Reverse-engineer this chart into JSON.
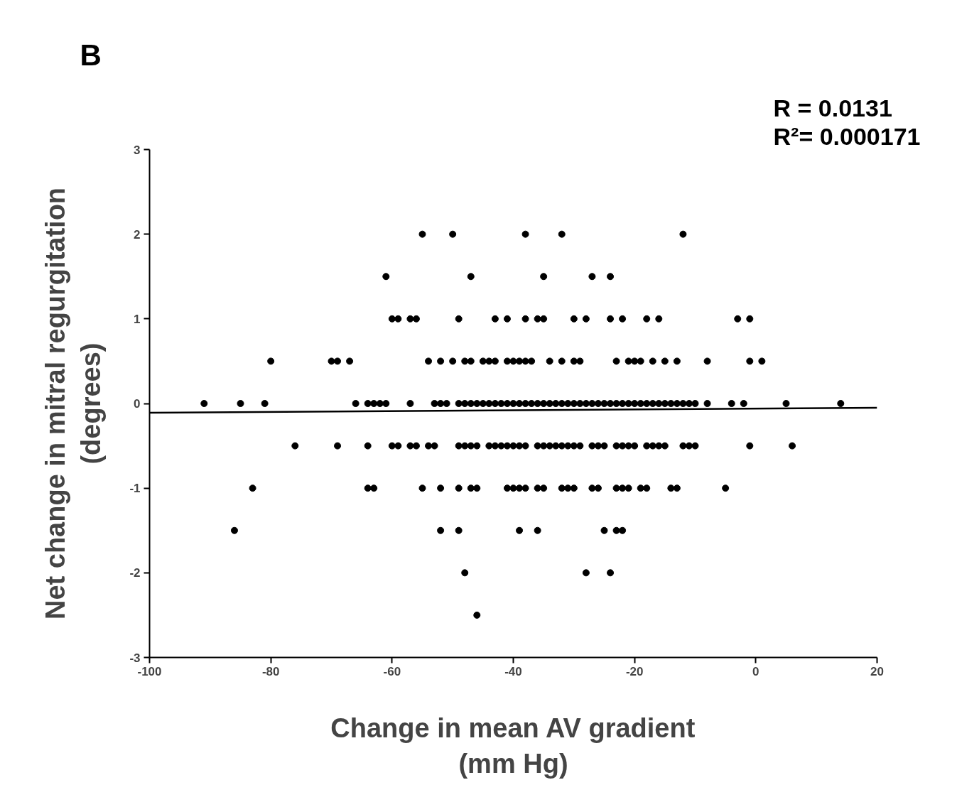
{
  "chart_data": {
    "type": "scatter",
    "xlabel": "Change in mean AV gradient\n(mm Hg)",
    "ylabel": "Net change in mitral regurgitation\n(degrees)",
    "annotations": [
      "B",
      "R = 0.0131",
      "R²= 0.000171"
    ],
    "xlim": [
      -100,
      20
    ],
    "ylim": [
      -3,
      3
    ],
    "xticks": [
      -100,
      -80,
      -60,
      -40,
      -20,
      0,
      20
    ],
    "yticks": [
      -3,
      -2,
      -1,
      0,
      1,
      2,
      3
    ],
    "grid": false,
    "series": [
      {
        "color": "#000000",
        "marker": "circle",
        "x": [
          -55,
          -50,
          -38,
          -32,
          -12,
          -61,
          -47,
          -35,
          -27,
          -24,
          -60,
          -59,
          -57,
          -56,
          -49,
          -43,
          -41,
          -38,
          -36,
          -35,
          -30,
          -28,
          -24,
          -22,
          -18,
          -16,
          -3,
          -1,
          -80,
          -70,
          -69,
          -67,
          -54,
          -52,
          -50,
          -48,
          -47,
          -45,
          -44,
          -43,
          -41,
          -40,
          -39,
          -38,
          -37,
          -34,
          -32,
          -30,
          -29,
          -23,
          -21,
          -20,
          -19,
          -17,
          -15,
          -13,
          -8,
          -1,
          1,
          -91,
          -85,
          -81,
          -66,
          -64,
          -63,
          -62,
          -61,
          -57,
          -53,
          -52,
          -51,
          -49,
          -48,
          -47,
          -46,
          -45,
          -44,
          -43,
          -42,
          -41,
          -40,
          -39,
          -38,
          -37,
          -36,
          -35,
          -34,
          -33,
          -32,
          -31,
          -30,
          -29,
          -28,
          -27,
          -26,
          -25,
          -24,
          -23,
          -22,
          -21,
          -20,
          -19,
          -18,
          -17,
          -16,
          -15,
          -14,
          -13,
          -12,
          -11,
          -10,
          -8,
          -4,
          -2,
          5,
          14,
          -76,
          -69,
          -64,
          -60,
          -59,
          -57,
          -56,
          -54,
          -53,
          -49,
          -48,
          -47,
          -46,
          -44,
          -43,
          -42,
          -41,
          -40,
          -39,
          -38,
          -36,
          -35,
          -34,
          -33,
          -32,
          -31,
          -30,
          -29,
          -27,
          -26,
          -25,
          -23,
          -22,
          -21,
          -20,
          -18,
          -17,
          -16,
          -15,
          -12,
          -11,
          -10,
          -1,
          6,
          -83,
          -64,
          -63,
          -55,
          -52,
          -49,
          -47,
          -46,
          -41,
          -40,
          -39,
          -38,
          -36,
          -35,
          -32,
          -31,
          -30,
          -27,
          -26,
          -23,
          -22,
          -21,
          -19,
          -18,
          -14,
          -13,
          -5,
          -86,
          -52,
          -49,
          -39,
          -36,
          -25,
          -23,
          -22,
          -48,
          -28,
          -24,
          -46
        ],
        "values": [
          2,
          2,
          2,
          2,
          2,
          1.5,
          1.5,
          1.5,
          1.5,
          1.5,
          1,
          1,
          1,
          1,
          1,
          1,
          1,
          1,
          1,
          1,
          1,
          1,
          1,
          1,
          1,
          1,
          1,
          1,
          0.5,
          0.5,
          0.5,
          0.5,
          0.5,
          0.5,
          0.5,
          0.5,
          0.5,
          0.5,
          0.5,
          0.5,
          0.5,
          0.5,
          0.5,
          0.5,
          0.5,
          0.5,
          0.5,
          0.5,
          0.5,
          0.5,
          0.5,
          0.5,
          0.5,
          0.5,
          0.5,
          0.5,
          0.5,
          0.5,
          0.5,
          0,
          0,
          0,
          0,
          0,
          0,
          0,
          0,
          0,
          0,
          0,
          0,
          0,
          0,
          0,
          0,
          0,
          0,
          0,
          0,
          0,
          0,
          0,
          0,
          0,
          0,
          0,
          0,
          0,
          0,
          0,
          0,
          0,
          0,
          0,
          0,
          0,
          0,
          0,
          0,
          0,
          0,
          0,
          0,
          0,
          0,
          0,
          0,
          0,
          0,
          0,
          0,
          0,
          0,
          0,
          0,
          0,
          -0.5,
          -0.5,
          -0.5,
          -0.5,
          -0.5,
          -0.5,
          -0.5,
          -0.5,
          -0.5,
          -0.5,
          -0.5,
          -0.5,
          -0.5,
          -0.5,
          -0.5,
          -0.5,
          -0.5,
          -0.5,
          -0.5,
          -0.5,
          -0.5,
          -0.5,
          -0.5,
          -0.5,
          -0.5,
          -0.5,
          -0.5,
          -0.5,
          -0.5,
          -0.5,
          -0.5,
          -0.5,
          -0.5,
          -0.5,
          -0.5,
          -0.5,
          -0.5,
          -0.5,
          -0.5,
          -0.5,
          -0.5,
          -0.5,
          -0.5,
          -0.5,
          -1,
          -1,
          -1,
          -1,
          -1,
          -1,
          -1,
          -1,
          -1,
          -1,
          -1,
          -1,
          -1,
          -1,
          -1,
          -1,
          -1,
          -1,
          -1,
          -1,
          -1,
          -1,
          -1,
          -1,
          -1,
          -1,
          -1,
          -1.5,
          -1.5,
          -1.5,
          -1.5,
          -1.5,
          -1.5,
          -1.5,
          -1.5,
          -2,
          -2,
          -2,
          -2.5
        ]
      },
      {
        "type": "line",
        "color": "#000000",
        "line_style": "solid",
        "x": [
          -100,
          20
        ],
        "values": [
          -0.11,
          -0.05
        ]
      }
    ]
  }
}
